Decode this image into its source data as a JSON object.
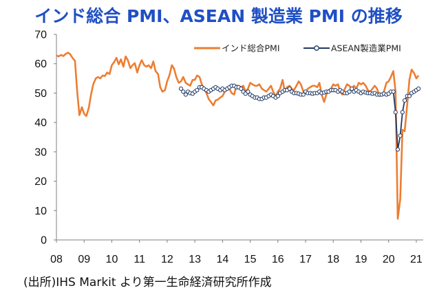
{
  "chart_data": {
    "type": "line",
    "title": "インド総合 PMI、ASEAN 製造業 PMI の推移",
    "xlabel": "",
    "ylabel": "",
    "xlim": [
      2008.0,
      2021.25
    ],
    "ylim": [
      0,
      70
    ],
    "y_ticks": [
      0,
      10,
      20,
      30,
      40,
      50,
      60,
      70
    ],
    "x_ticks": [
      {
        "label": "08",
        "value": 2008.0
      },
      {
        "label": "09",
        "value": 2009.0
      },
      {
        "label": "10",
        "value": 2010.0
      },
      {
        "label": "11",
        "value": 2011.0
      },
      {
        "label": "12",
        "value": 2012.0
      },
      {
        "label": "13",
        "value": 2013.0
      },
      {
        "label": "14",
        "value": 2014.0
      },
      {
        "label": "15",
        "value": 2015.0
      },
      {
        "label": "16",
        "value": 2016.0
      },
      {
        "label": "17",
        "value": 2017.0
      },
      {
        "label": "18",
        "value": 2018.0
      },
      {
        "label": "19",
        "value": 2019.0
      },
      {
        "label": "20",
        "value": 2020.0
      },
      {
        "label": "21",
        "value": 2021.0
      }
    ],
    "grid": false,
    "legend_position": "top-right",
    "series": [
      {
        "name": "インド総合PMI",
        "color": "#ed7d31",
        "marker": "none",
        "points": [
          [
            2008.0,
            62.8
          ],
          [
            2008.08,
            62.5
          ],
          [
            2008.17,
            63.0
          ],
          [
            2008.25,
            62.6
          ],
          [
            2008.33,
            63.3
          ],
          [
            2008.42,
            63.8
          ],
          [
            2008.5,
            63.2
          ],
          [
            2008.58,
            62.0
          ],
          [
            2008.67,
            61.0
          ],
          [
            2008.75,
            50.5
          ],
          [
            2008.83,
            42.5
          ],
          [
            2008.92,
            45.2
          ],
          [
            2009.0,
            43.0
          ],
          [
            2009.08,
            42.2
          ],
          [
            2009.17,
            45.0
          ],
          [
            2009.25,
            49.5
          ],
          [
            2009.33,
            53.0
          ],
          [
            2009.42,
            55.0
          ],
          [
            2009.5,
            55.5
          ],
          [
            2009.58,
            55.0
          ],
          [
            2009.67,
            56.0
          ],
          [
            2009.75,
            55.8
          ],
          [
            2009.83,
            57.0
          ],
          [
            2009.92,
            56.5
          ],
          [
            2010.0,
            59.5
          ],
          [
            2010.08,
            60.5
          ],
          [
            2010.17,
            62.0
          ],
          [
            2010.25,
            59.8
          ],
          [
            2010.33,
            61.5
          ],
          [
            2010.42,
            59.0
          ],
          [
            2010.5,
            62.5
          ],
          [
            2010.58,
            61.2
          ],
          [
            2010.67,
            58.5
          ],
          [
            2010.75,
            59.5
          ],
          [
            2010.83,
            60.2
          ],
          [
            2010.92,
            57.0
          ],
          [
            2011.0,
            59.5
          ],
          [
            2011.08,
            61.2
          ],
          [
            2011.17,
            59.5
          ],
          [
            2011.25,
            59.0
          ],
          [
            2011.33,
            59.5
          ],
          [
            2011.42,
            58.5
          ],
          [
            2011.5,
            60.8
          ],
          [
            2011.58,
            57.5
          ],
          [
            2011.67,
            56.5
          ],
          [
            2011.75,
            52.0
          ],
          [
            2011.83,
            50.5
          ],
          [
            2011.92,
            51.0
          ],
          [
            2012.0,
            54.0
          ],
          [
            2012.08,
            56.0
          ],
          [
            2012.17,
            59.5
          ],
          [
            2012.25,
            58.3
          ],
          [
            2012.33,
            55.5
          ],
          [
            2012.42,
            53.5
          ],
          [
            2012.5,
            54.0
          ],
          [
            2012.58,
            55.5
          ],
          [
            2012.67,
            53.5
          ],
          [
            2012.75,
            53.0
          ],
          [
            2012.83,
            52.5
          ],
          [
            2012.92,
            54.5
          ],
          [
            2013.0,
            54.5
          ],
          [
            2013.08,
            56.0
          ],
          [
            2013.17,
            55.5
          ],
          [
            2013.25,
            53.0
          ],
          [
            2013.33,
            51.5
          ],
          [
            2013.42,
            50.0
          ],
          [
            2013.5,
            48.0
          ],
          [
            2013.58,
            47.0
          ],
          [
            2013.67,
            45.8
          ],
          [
            2013.75,
            47.5
          ],
          [
            2013.83,
            47.8
          ],
          [
            2013.92,
            48.5
          ],
          [
            2014.0,
            49.0
          ],
          [
            2014.08,
            50.5
          ],
          [
            2014.17,
            52.0
          ],
          [
            2014.25,
            51.5
          ],
          [
            2014.33,
            50.0
          ],
          [
            2014.42,
            49.5
          ],
          [
            2014.5,
            52.5
          ],
          [
            2014.58,
            52.5
          ],
          [
            2014.67,
            52.0
          ],
          [
            2014.75,
            52.5
          ],
          [
            2014.83,
            50.5
          ],
          [
            2014.92,
            51.5
          ],
          [
            2015.0,
            53.5
          ],
          [
            2015.08,
            53.0
          ],
          [
            2015.17,
            52.5
          ],
          [
            2015.25,
            52.5
          ],
          [
            2015.33,
            53.0
          ],
          [
            2015.42,
            51.5
          ],
          [
            2015.5,
            51.0
          ],
          [
            2015.58,
            50.5
          ],
          [
            2015.67,
            51.5
          ],
          [
            2015.75,
            52.5
          ],
          [
            2015.83,
            50.5
          ],
          [
            2015.92,
            49.0
          ],
          [
            2016.0,
            50.5
          ],
          [
            2016.08,
            51.5
          ],
          [
            2016.17,
            54.5
          ],
          [
            2016.25,
            50.5
          ],
          [
            2016.33,
            52.0
          ],
          [
            2016.42,
            52.5
          ],
          [
            2016.5,
            51.5
          ],
          [
            2016.58,
            51.0
          ],
          [
            2016.67,
            52.5
          ],
          [
            2016.75,
            54.0
          ],
          [
            2016.83,
            53.0
          ],
          [
            2016.92,
            50.5
          ],
          [
            2017.0,
            50.2
          ],
          [
            2017.08,
            51.5
          ],
          [
            2017.17,
            52.0
          ],
          [
            2017.25,
            52.5
          ],
          [
            2017.33,
            52.5
          ],
          [
            2017.42,
            52.0
          ],
          [
            2017.5,
            53.5
          ],
          [
            2017.58,
            49.5
          ],
          [
            2017.67,
            47.0
          ],
          [
            2017.75,
            49.5
          ],
          [
            2017.83,
            51.0
          ],
          [
            2017.92,
            51.5
          ],
          [
            2018.0,
            53.0
          ],
          [
            2018.08,
            52.5
          ],
          [
            2018.17,
            53.0
          ],
          [
            2018.25,
            50.5
          ],
          [
            2018.33,
            49.5
          ],
          [
            2018.42,
            51.5
          ],
          [
            2018.5,
            53.0
          ],
          [
            2018.58,
            52.5
          ],
          [
            2018.67,
            51.5
          ],
          [
            2018.75,
            52.5
          ],
          [
            2018.83,
            51.5
          ],
          [
            2018.92,
            53.5
          ],
          [
            2019.0,
            53.0
          ],
          [
            2019.08,
            53.5
          ],
          [
            2019.17,
            52.5
          ],
          [
            2019.25,
            51.0
          ],
          [
            2019.33,
            50.5
          ],
          [
            2019.42,
            51.5
          ],
          [
            2019.5,
            52.5
          ],
          [
            2019.58,
            51.5
          ],
          [
            2019.67,
            49.0
          ],
          [
            2019.75,
            49.5
          ],
          [
            2019.83,
            50.5
          ],
          [
            2019.92,
            53.5
          ],
          [
            2020.0,
            54.0
          ],
          [
            2020.08,
            55.5
          ],
          [
            2020.17,
            57.5
          ],
          [
            2020.25,
            50.5
          ],
          [
            2020.33,
            7.2
          ],
          [
            2020.42,
            14.0
          ],
          [
            2020.5,
            37.5
          ],
          [
            2020.58,
            37.0
          ],
          [
            2020.67,
            46.0
          ],
          [
            2020.75,
            54.5
          ],
          [
            2020.83,
            58.0
          ],
          [
            2020.92,
            56.8
          ],
          [
            2021.0,
            55.0
          ],
          [
            2021.08,
            56.0
          ]
        ]
      },
      {
        "name": "ASEAN製造業PMI",
        "color": "#1f3864",
        "marker": "circle",
        "points": [
          [
            2012.5,
            51.5
          ],
          [
            2012.58,
            50.5
          ],
          [
            2012.67,
            49.5
          ],
          [
            2012.75,
            50.5
          ],
          [
            2012.83,
            50.0
          ],
          [
            2012.92,
            49.8
          ],
          [
            2013.0,
            50.5
          ],
          [
            2013.08,
            51.0
          ],
          [
            2013.17,
            52.0
          ],
          [
            2013.25,
            52.0
          ],
          [
            2013.33,
            51.5
          ],
          [
            2013.42,
            51.0
          ],
          [
            2013.5,
            50.5
          ],
          [
            2013.58,
            51.0
          ],
          [
            2013.67,
            51.5
          ],
          [
            2013.75,
            52.0
          ],
          [
            2013.83,
            51.5
          ],
          [
            2013.92,
            51.0
          ],
          [
            2014.0,
            51.5
          ],
          [
            2014.08,
            51.0
          ],
          [
            2014.17,
            51.5
          ],
          [
            2014.25,
            52.0
          ],
          [
            2014.33,
            52.5
          ],
          [
            2014.42,
            52.5
          ],
          [
            2014.5,
            52.0
          ],
          [
            2014.58,
            52.0
          ],
          [
            2014.67,
            51.5
          ],
          [
            2014.75,
            50.5
          ],
          [
            2014.83,
            49.8
          ],
          [
            2014.92,
            50.5
          ],
          [
            2015.0,
            49.5
          ],
          [
            2015.08,
            49.0
          ],
          [
            2015.17,
            48.5
          ],
          [
            2015.25,
            48.5
          ],
          [
            2015.33,
            48.0
          ],
          [
            2015.42,
            48.0
          ],
          [
            2015.5,
            48.5
          ],
          [
            2015.58,
            48.5
          ],
          [
            2015.67,
            49.0
          ],
          [
            2015.75,
            49.5
          ],
          [
            2015.83,
            49.0
          ],
          [
            2015.92,
            48.5
          ],
          [
            2016.0,
            49.0
          ],
          [
            2016.08,
            50.0
          ],
          [
            2016.17,
            50.5
          ],
          [
            2016.25,
            51.0
          ],
          [
            2016.33,
            51.0
          ],
          [
            2016.42,
            51.5
          ],
          [
            2016.5,
            50.5
          ],
          [
            2016.58,
            50.0
          ],
          [
            2016.67,
            50.0
          ],
          [
            2016.75,
            49.8
          ],
          [
            2016.83,
            49.5
          ],
          [
            2016.92,
            49.5
          ],
          [
            2017.0,
            50.5
          ],
          [
            2017.08,
            50.0
          ],
          [
            2017.17,
            50.0
          ],
          [
            2017.25,
            49.8
          ],
          [
            2017.33,
            50.0
          ],
          [
            2017.42,
            50.0
          ],
          [
            2017.5,
            50.5
          ],
          [
            2017.58,
            50.0
          ],
          [
            2017.67,
            50.2
          ],
          [
            2017.75,
            50.5
          ],
          [
            2017.83,
            50.5
          ],
          [
            2017.92,
            51.0
          ],
          [
            2018.0,
            51.0
          ],
          [
            2018.08,
            51.0
          ],
          [
            2018.17,
            50.5
          ],
          [
            2018.25,
            51.0
          ],
          [
            2018.33,
            50.5
          ],
          [
            2018.42,
            50.0
          ],
          [
            2018.5,
            50.0
          ],
          [
            2018.58,
            50.5
          ],
          [
            2018.67,
            51.5
          ],
          [
            2018.75,
            50.5
          ],
          [
            2018.83,
            51.0
          ],
          [
            2018.92,
            50.5
          ],
          [
            2019.0,
            50.0
          ],
          [
            2019.08,
            50.5
          ],
          [
            2019.17,
            50.2
          ],
          [
            2019.25,
            50.0
          ],
          [
            2019.33,
            50.0
          ],
          [
            2019.42,
            49.8
          ],
          [
            2019.5,
            50.0
          ],
          [
            2019.58,
            49.5
          ],
          [
            2019.67,
            49.5
          ],
          [
            2019.75,
            49.5
          ],
          [
            2019.83,
            49.8
          ],
          [
            2019.92,
            49.5
          ],
          [
            2020.0,
            49.8
          ],
          [
            2020.08,
            50.5
          ],
          [
            2020.17,
            50.5
          ],
          [
            2020.25,
            43.5
          ],
          [
            2020.33,
            30.8
          ],
          [
            2020.42,
            35.5
          ],
          [
            2020.5,
            43.5
          ],
          [
            2020.58,
            47.5
          ],
          [
            2020.67,
            49.0
          ],
          [
            2020.75,
            49.0
          ],
          [
            2020.83,
            50.0
          ],
          [
            2020.92,
            50.5
          ],
          [
            2021.0,
            51.0
          ],
          [
            2021.08,
            51.5
          ]
        ]
      }
    ]
  },
  "source_note": "(出所)IHS Markit より第一生命経済研究所作成"
}
